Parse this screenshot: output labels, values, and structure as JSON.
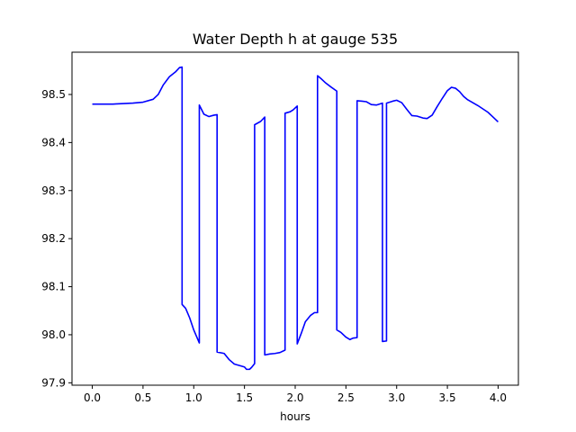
{
  "chart_data": {
    "type": "line",
    "title": "Water Depth h at gauge 535",
    "xlabel": "hours",
    "ylabel": "",
    "xlim": [
      -0.2,
      4.2
    ],
    "ylim": [
      97.895,
      98.588
    ],
    "xticks": [
      0.0,
      0.5,
      1.0,
      1.5,
      2.0,
      2.5,
      3.0,
      3.5,
      4.0
    ],
    "xtick_labels": [
      "0.0",
      "0.5",
      "1.0",
      "1.5",
      "2.0",
      "2.5",
      "3.0",
      "3.5",
      "4.0"
    ],
    "yticks": [
      97.9,
      98.0,
      98.1,
      98.2,
      98.3,
      98.4,
      98.5
    ],
    "ytick_labels": [
      "97.9",
      "98.0",
      "98.1",
      "98.2",
      "98.3",
      "98.4",
      "98.5"
    ],
    "grid": false,
    "line_color": "#0000ff",
    "series": [
      {
        "x": [
          0.0,
          0.2,
          0.4,
          0.5,
          0.6,
          0.65,
          0.7,
          0.76,
          0.82,
          0.86,
          0.885,
          0.885,
          0.92,
          0.96,
          1.0,
          1.055,
          1.055,
          1.1,
          1.15,
          1.2,
          1.23,
          1.23,
          1.28,
          1.3,
          1.35,
          1.4,
          1.5,
          1.52,
          1.55,
          1.57,
          1.6,
          1.6,
          1.66,
          1.7,
          1.7,
          1.75,
          1.8,
          1.85,
          1.9,
          1.9,
          1.95,
          1.98,
          2.02,
          2.02,
          2.06,
          2.1,
          2.15,
          2.19,
          2.22,
          2.22,
          2.26,
          2.3,
          2.35,
          2.41,
          2.41,
          2.45,
          2.5,
          2.54,
          2.57,
          2.61,
          2.61,
          2.66,
          2.7,
          2.75,
          2.8,
          2.86,
          2.86,
          2.9,
          2.9,
          2.96,
          3.0,
          3.05,
          3.1,
          3.15,
          3.2,
          3.26,
          3.3,
          3.35,
          3.4,
          3.45,
          3.5,
          3.54,
          3.58,
          3.62,
          3.66,
          3.7,
          3.8,
          3.85,
          3.9,
          3.95,
          4.0
        ],
        "y": [
          98.48,
          98.48,
          98.482,
          98.484,
          98.49,
          98.5,
          98.52,
          98.537,
          98.547,
          98.556,
          98.557,
          98.063,
          98.055,
          98.035,
          98.01,
          97.983,
          98.478,
          98.459,
          98.454,
          98.457,
          98.458,
          97.964,
          97.962,
          97.961,
          97.948,
          97.939,
          97.933,
          97.928,
          97.928,
          97.932,
          97.94,
          98.437,
          98.444,
          98.453,
          97.958,
          97.96,
          97.961,
          97.963,
          97.968,
          98.461,
          98.464,
          98.468,
          98.476,
          97.981,
          98.003,
          98.027,
          98.04,
          98.046,
          98.046,
          98.539,
          98.532,
          98.524,
          98.516,
          98.507,
          98.01,
          98.005,
          97.995,
          97.99,
          97.993,
          97.994,
          98.487,
          98.486,
          98.485,
          98.479,
          98.478,
          98.482,
          97.986,
          97.987,
          98.482,
          98.486,
          98.488,
          98.483,
          98.469,
          98.456,
          98.455,
          98.451,
          98.45,
          98.457,
          98.475,
          98.492,
          98.508,
          98.515,
          98.513,
          98.506,
          98.496,
          98.489,
          98.477,
          98.47,
          98.463,
          98.453,
          98.443
        ]
      }
    ]
  }
}
